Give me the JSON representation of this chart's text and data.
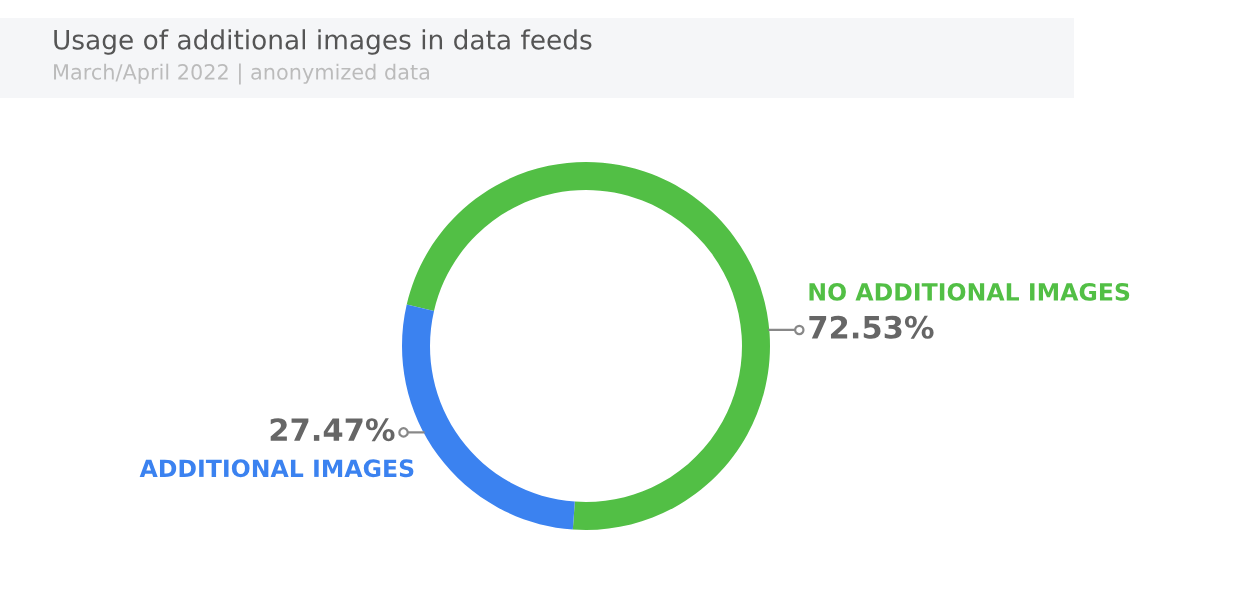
{
  "chart_data": {
    "type": "donut",
    "title": "Usage of additional images in data feeds",
    "subtitle": "March/April 2022 | anonymized data",
    "categories": [
      "NO ADDITIONAL IMAGES",
      "ADDITIONAL IMAGES"
    ],
    "values": [
      72.53,
      27.47
    ],
    "value_labels": [
      "72.53%",
      "27.47%"
    ],
    "colors": [
      "#52bf45",
      "#3b82f0"
    ],
    "legend": false
  }
}
